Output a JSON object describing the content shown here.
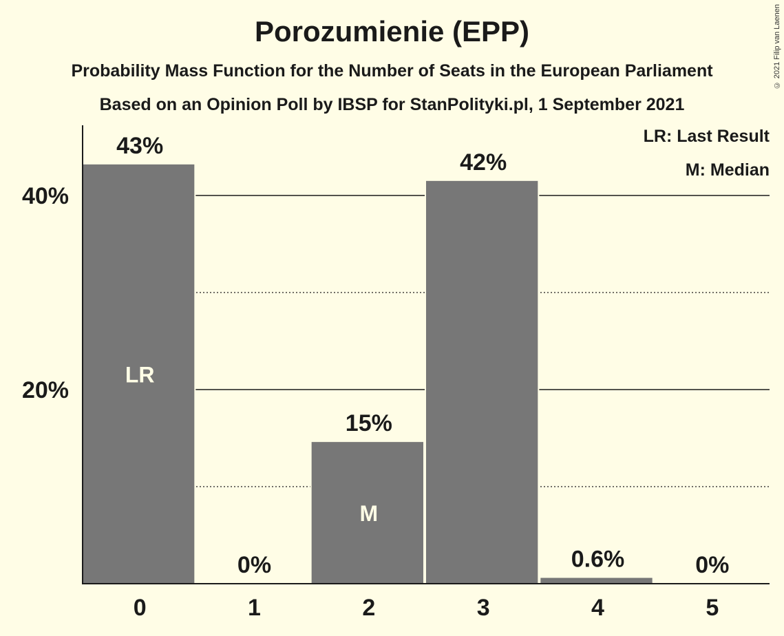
{
  "chart_data": {
    "type": "bar",
    "title": "Porozumienie (EPP)",
    "subtitle": "Probability Mass Function for the Number of Seats in the European Parliament",
    "subtitle2": "Based on an Opinion Poll by IBSP for StanPolityki.pl, 1 September 2021",
    "categories": [
      "0",
      "1",
      "2",
      "3",
      "4",
      "5"
    ],
    "values": [
      43.2,
      0,
      14.6,
      41.5,
      0.6,
      0
    ],
    "data_labels": [
      "43%",
      "0%",
      "15%",
      "42%",
      "0.6%",
      "0%"
    ],
    "bar_markers": [
      "LR",
      "",
      "M",
      "",
      "",
      ""
    ],
    "y_ticks": [
      20,
      40
    ],
    "y_tick_labels": [
      "20%",
      "40%"
    ],
    "ylim": [
      0,
      47
    ],
    "grid": "solid at labelled ticks, dotted at midpoints",
    "legend": [
      "LR: Last Result",
      "M: Median"
    ],
    "legend_position": "top-right",
    "bar_color": "#777777",
    "background_color": "#fffde6"
  },
  "copyright": "© 2021 Filip van Laenen"
}
